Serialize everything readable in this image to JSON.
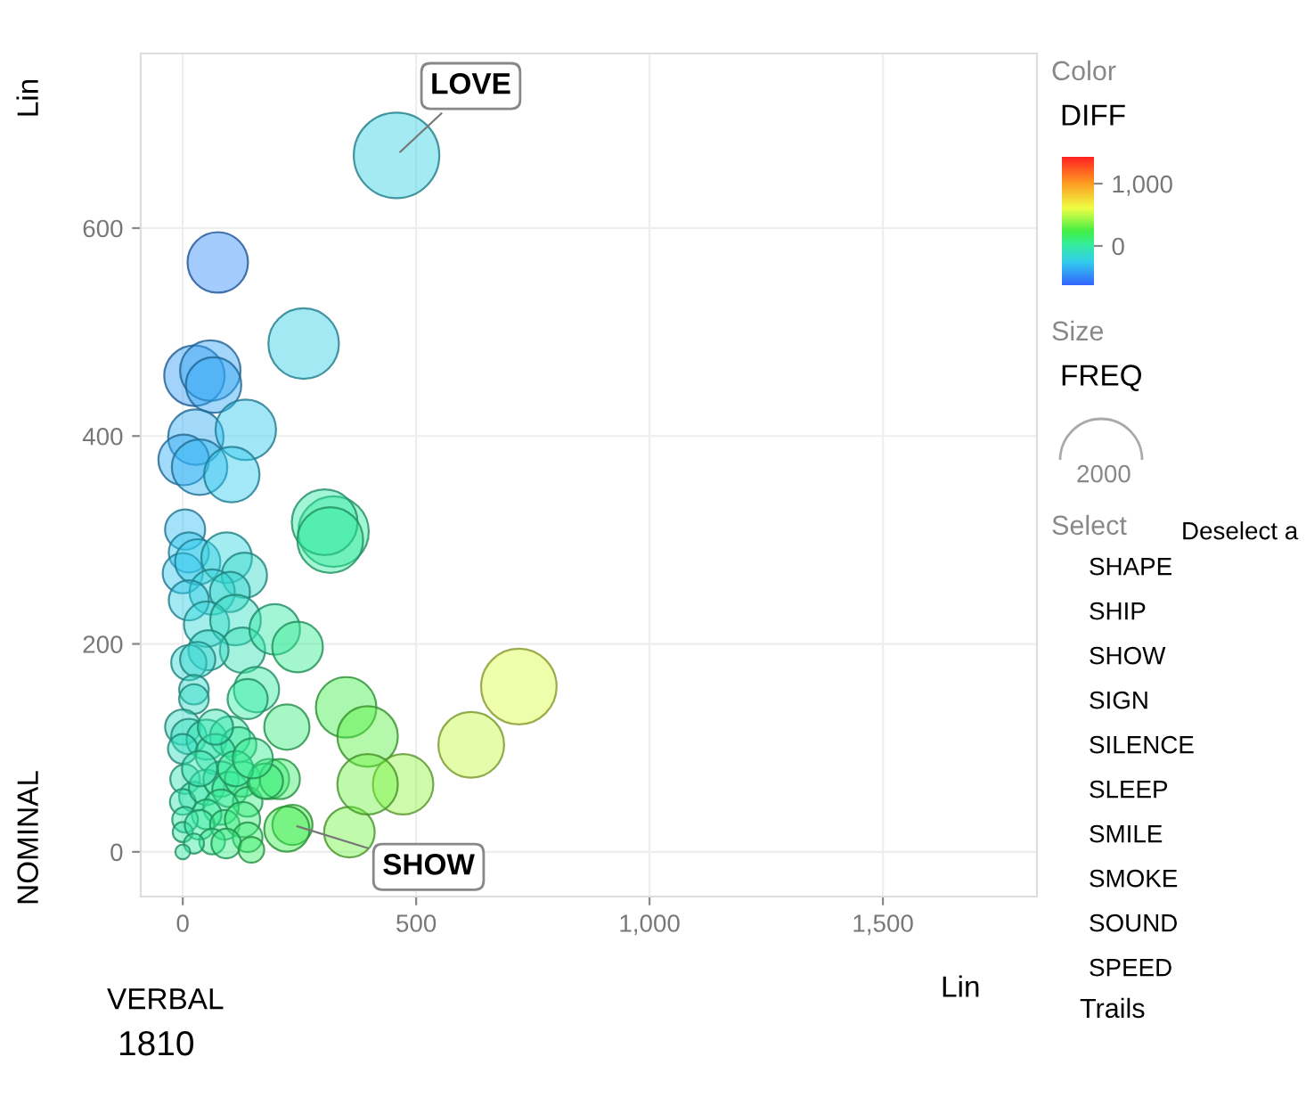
{
  "chart_data": {
    "type": "bubble",
    "xlabel": "VERBAL",
    "ylabel": "NOMINAL",
    "clabel": "DIFF",
    "xlim": [
      -90,
      1830
    ],
    "ylim": [
      -43,
      768
    ],
    "xticks": [
      0,
      500,
      {
        "value": 1000,
        "label": "1,000"
      },
      {
        "value": 1500,
        "label": "1,500"
      }
    ],
    "yticks": [
      0,
      200,
      400,
      600
    ],
    "clim": [
      -630,
      1430
    ],
    "cticks": [
      0,
      {
        "value": 1000,
        "label": "1,000"
      }
    ],
    "grid": true,
    "legend": false,
    "x": [
      458,
      75,
      259,
      25,
      59,
      66,
      28,
      135,
      2,
      36,
      105,
      5,
      13,
      0,
      32,
      94,
      132,
      63,
      101,
      13,
      51,
      113,
      128,
      55,
      13,
      32,
      197,
      246,
      158,
      139,
      24,
      24,
      0,
      13,
      51,
      101,
      120,
      0,
      70,
      223,
      350,
      5,
      24,
      0,
      51,
      82,
      101,
      128,
      139,
      185,
      208,
      82,
      51,
      5,
      0,
      36,
      90,
      128,
      139,
      63,
      93,
      24,
      0,
      235,
      223,
      357,
      147,
      323,
      304,
      316,
      720,
      618,
      396,
      472,
      396,
      177,
      36,
      70,
      113,
      150
    ],
    "values": [
      670,
      567,
      489,
      458,
      463,
      449,
      399,
      406,
      377,
      370,
      363,
      310,
      288,
      268,
      279,
      283,
      266,
      250,
      250,
      242,
      219,
      223,
      194,
      194,
      182,
      185,
      214,
      197,
      156,
      147,
      156,
      147,
      120,
      111,
      108,
      111,
      103,
      99,
      94,
      120,
      139,
      70,
      53,
      48,
      62,
      70,
      60,
      70,
      48,
      70,
      70,
      43,
      36,
      31,
      19,
      26,
      26,
      31,
      14,
      10,
      8,
      8,
      0,
      26,
      22,
      19,
      2,
      308,
      317,
      300,
      159,
      103,
      111,
      65,
      65,
      68,
      80,
      120,
      80,
      90
    ],
    "sizes": [
      1,
      0.5,
      0.68,
      0.5,
      0.5,
      0.42,
      0.42,
      0.5,
      0.35,
      0.42,
      0.42,
      0.22,
      0.22,
      0.22,
      0.28,
      0.35,
      0.28,
      0.28,
      0.22,
      0.22,
      0.28,
      0.35,
      0.28,
      0.22,
      0.17,
      0.17,
      0.35,
      0.35,
      0.28,
      0.22,
      0.12,
      0.12,
      0.17,
      0.17,
      0.22,
      0.22,
      0.17,
      0.12,
      0.22,
      0.28,
      0.5,
      0.12,
      0.12,
      0.09,
      0.17,
      0.17,
      0.17,
      0.17,
      0.12,
      0.22,
      0.22,
      0.17,
      0.12,
      0.09,
      0.055,
      0.12,
      0.12,
      0.17,
      0.12,
      0.09,
      0.12,
      0.055,
      0.03,
      0.22,
      0.28,
      0.35,
      0.09,
      0.68,
      0.59,
      0.59,
      0.78,
      0.59,
      0.5,
      0.5,
      0.5,
      0.17,
      0.17,
      0.17,
      0.17,
      0.22
    ],
    "cvalues": [
      -212,
      -492,
      -230,
      -433,
      -404,
      -383,
      -371,
      -271,
      -375,
      -334,
      -258,
      -305,
      -275,
      -268,
      -247,
      -189,
      -134,
      -187,
      -149,
      -229,
      -168,
      -110,
      -66,
      -139,
      -169,
      -153,
      -17,
      49,
      2,
      -8,
      -132,
      -123,
      -120,
      -98,
      -57,
      -10,
      17,
      -99,
      -24,
      103,
      211,
      -65,
      -29,
      -48,
      -11,
      12,
      41,
      58,
      91,
      115,
      138,
      39,
      15,
      -26,
      -19,
      10,
      64,
      97,
      125,
      53,
      85,
      16,
      0,
      209,
      201,
      338,
      145,
      15,
      -13,
      16,
      561,
      515,
      285,
      407,
      331,
      109,
      -44,
      -50,
      33,
      60
    ],
    "annotations": [
      {
        "text": "LOVE",
        "x": 458,
        "y": 670
      },
      {
        "text": "SHOW",
        "x": 235,
        "y": 26
      },
      "Color",
      "Size",
      "FREQ",
      "2000",
      "Select",
      "Deselect a",
      "SHAPE",
      "SHIP",
      "SHOW",
      "SIGN",
      "SILENCE",
      "SLEEP",
      "SMILE",
      "SMOKE",
      "SOUND",
      "SPEED",
      "Trails",
      "1810",
      "Lin",
      "Lin"
    ]
  }
}
